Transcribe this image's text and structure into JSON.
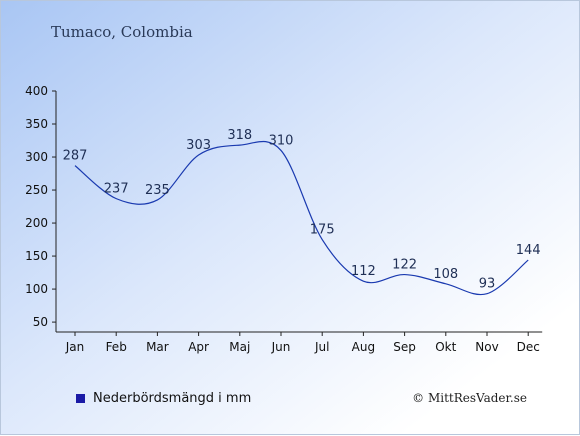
{
  "place": "Tumaco, Colombia",
  "legend_label": "Nederbördsmängd i mm",
  "credit": "© MittResVader.se",
  "colors": {
    "line": "#1a3ab0",
    "swatch": "#1a1aa6",
    "axis": "#222222"
  },
  "chart_data": {
    "type": "line",
    "categories": [
      "Jan",
      "Feb",
      "Mar",
      "Apr",
      "Maj",
      "Jun",
      "Jul",
      "Aug",
      "Sep",
      "Okt",
      "Nov",
      "Dec"
    ],
    "series": [
      {
        "name": "Nederbördsmängd i mm",
        "values": [
          287,
          237,
          235,
          303,
          318,
          310,
          175,
          112,
          122,
          108,
          93,
          144
        ]
      }
    ],
    "yticks": [
      50,
      100,
      150,
      200,
      250,
      300,
      350,
      400
    ],
    "ylim": [
      35,
      400
    ],
    "grid": false,
    "legend_position": "bottom-left"
  }
}
